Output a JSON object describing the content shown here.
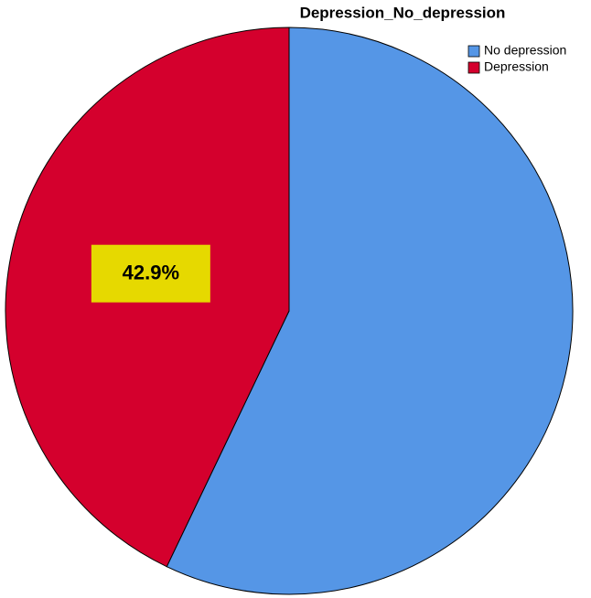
{
  "chart_data": {
    "type": "pie",
    "title": "Depression_No_depression",
    "categories": [
      "No depression",
      "Depression"
    ],
    "values": [
      57.1,
      42.9
    ],
    "value_labels": [
      null,
      "42.9%"
    ],
    "colors": [
      "#5596e6",
      "#d4002d"
    ],
    "legend": "top-right"
  }
}
